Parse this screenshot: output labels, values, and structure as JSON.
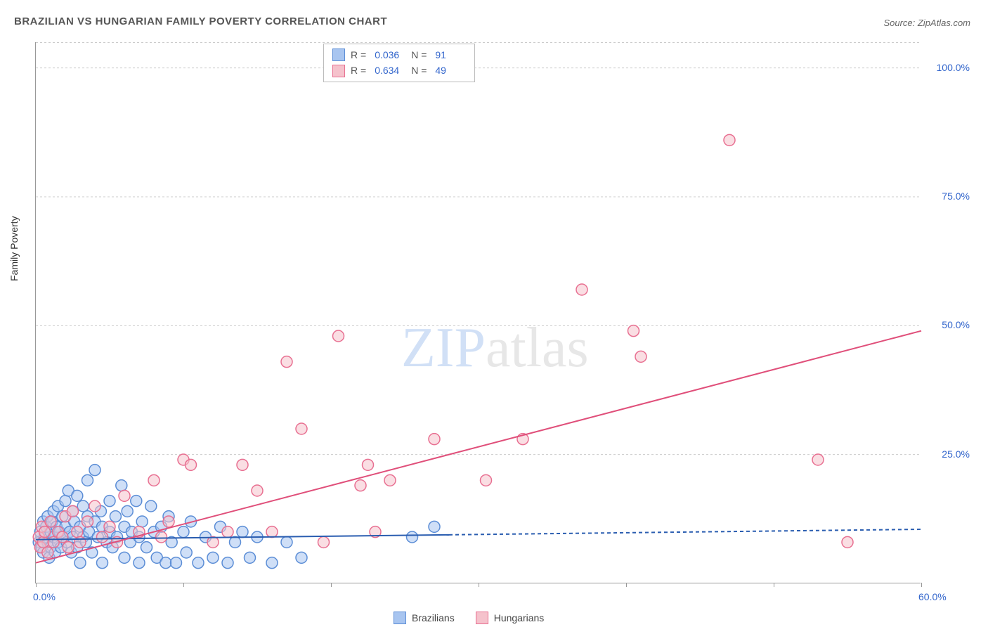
{
  "title": "BRAZILIAN VS HUNGARIAN FAMILY POVERTY CORRELATION CHART",
  "source_label": "Source: ZipAtlas.com",
  "y_axis_label": "Family Poverty",
  "watermark": {
    "part1": "ZIP",
    "part2": "atlas"
  },
  "chart": {
    "type": "scatter",
    "xlim": [
      0,
      60
    ],
    "ylim": [
      0,
      105
    ],
    "background_color": "#ffffff",
    "grid_color": "#cccccc",
    "grid_dash": "3,3",
    "axis_color": "#999999",
    "y_ticks": [
      25,
      50,
      75,
      100
    ],
    "y_tick_labels": [
      "25.0%",
      "50.0%",
      "75.0%",
      "100.0%"
    ],
    "x_ticks": [
      0,
      10,
      20,
      30,
      40,
      50,
      60
    ],
    "x_tick_labels_shown": {
      "0": "0.0%",
      "60": "60.0%"
    },
    "tick_label_color": "#3366cc",
    "tick_label_fontsize": 14,
    "marker_radius": 8,
    "marker_stroke_width": 1.5,
    "series": [
      {
        "id": "brazilians",
        "label": "Brazilians",
        "fill_color": "#a8c5f0",
        "stroke_color": "#5b8dd6",
        "fill_opacity": 0.55,
        "R": "0.036",
        "N": "91",
        "trend": {
          "y_at_x0": 8.5,
          "y_at_x60": 10.5,
          "solid_until_x": 28,
          "line_color": "#2a5db0",
          "line_width": 2
        },
        "points": [
          [
            0.2,
            8
          ],
          [
            0.3,
            10
          ],
          [
            0.4,
            7
          ],
          [
            0.5,
            12
          ],
          [
            0.5,
            6
          ],
          [
            0.6,
            9
          ],
          [
            0.7,
            11
          ],
          [
            0.8,
            8
          ],
          [
            0.8,
            13
          ],
          [
            0.9,
            5
          ],
          [
            1.0,
            10
          ],
          [
            1.0,
            7
          ],
          [
            1.1,
            12
          ],
          [
            1.2,
            9
          ],
          [
            1.2,
            14
          ],
          [
            1.3,
            6
          ],
          [
            1.4,
            11
          ],
          [
            1.5,
            8
          ],
          [
            1.5,
            15
          ],
          [
            1.6,
            10
          ],
          [
            1.7,
            7
          ],
          [
            1.8,
            13
          ],
          [
            1.8,
            9
          ],
          [
            2.0,
            16
          ],
          [
            2.0,
            11
          ],
          [
            2.1,
            8
          ],
          [
            2.2,
            18
          ],
          [
            2.3,
            10
          ],
          [
            2.4,
            6
          ],
          [
            2.5,
            14
          ],
          [
            2.5,
            9
          ],
          [
            2.6,
            12
          ],
          [
            2.8,
            7
          ],
          [
            2.8,
            17
          ],
          [
            3.0,
            11
          ],
          [
            3.0,
            4
          ],
          [
            3.2,
            9
          ],
          [
            3.2,
            15
          ],
          [
            3.4,
            8
          ],
          [
            3.5,
            13
          ],
          [
            3.5,
            20
          ],
          [
            3.6,
            10
          ],
          [
            3.8,
            6
          ],
          [
            4.0,
            12
          ],
          [
            4.0,
            22
          ],
          [
            4.2,
            9
          ],
          [
            4.4,
            14
          ],
          [
            4.5,
            4
          ],
          [
            4.5,
            11
          ],
          [
            4.8,
            8
          ],
          [
            5.0,
            16
          ],
          [
            5.0,
            10
          ],
          [
            5.2,
            7
          ],
          [
            5.4,
            13
          ],
          [
            5.5,
            9
          ],
          [
            5.8,
            19
          ],
          [
            6.0,
            11
          ],
          [
            6.0,
            5
          ],
          [
            6.2,
            14
          ],
          [
            6.4,
            8
          ],
          [
            6.5,
            10
          ],
          [
            6.8,
            16
          ],
          [
            7.0,
            9
          ],
          [
            7.0,
            4
          ],
          [
            7.2,
            12
          ],
          [
            7.5,
            7
          ],
          [
            7.8,
            15
          ],
          [
            8.0,
            10
          ],
          [
            8.2,
            5
          ],
          [
            8.5,
            11
          ],
          [
            8.8,
            4
          ],
          [
            9.0,
            13
          ],
          [
            9.2,
            8
          ],
          [
            9.5,
            4
          ],
          [
            10.0,
            10
          ],
          [
            10.2,
            6
          ],
          [
            10.5,
            12
          ],
          [
            11.0,
            4
          ],
          [
            11.5,
            9
          ],
          [
            12.0,
            5
          ],
          [
            12.5,
            11
          ],
          [
            13.0,
            4
          ],
          [
            13.5,
            8
          ],
          [
            14.0,
            10
          ],
          [
            14.5,
            5
          ],
          [
            15.0,
            9
          ],
          [
            16.0,
            4
          ],
          [
            17.0,
            8
          ],
          [
            18.0,
            5
          ],
          [
            25.5,
            9
          ],
          [
            27.0,
            11
          ]
        ]
      },
      {
        "id": "hungarians",
        "label": "Hungarians",
        "fill_color": "#f5c2cc",
        "stroke_color": "#e86f91",
        "fill_opacity": 0.55,
        "R": "0.634",
        "N": "49",
        "trend": {
          "y_at_x0": 4,
          "y_at_x60": 49,
          "solid_until_x": 60,
          "line_color": "#e04f7a",
          "line_width": 2
        },
        "points": [
          [
            0.2,
            9
          ],
          [
            0.3,
            7
          ],
          [
            0.4,
            11
          ],
          [
            0.5,
            8
          ],
          [
            0.6,
            10
          ],
          [
            0.8,
            6
          ],
          [
            1.0,
            12
          ],
          [
            1.2,
            8
          ],
          [
            1.5,
            10
          ],
          [
            1.8,
            9
          ],
          [
            2.0,
            13
          ],
          [
            2.2,
            7
          ],
          [
            2.5,
            14
          ],
          [
            2.8,
            10
          ],
          [
            3.0,
            8
          ],
          [
            3.5,
            12
          ],
          [
            4.0,
            15
          ],
          [
            4.5,
            9
          ],
          [
            5.0,
            11
          ],
          [
            5.5,
            8
          ],
          [
            6.0,
            17
          ],
          [
            7.0,
            10
          ],
          [
            8.0,
            20
          ],
          [
            8.5,
            9
          ],
          [
            9.0,
            12
          ],
          [
            10.0,
            24
          ],
          [
            10.5,
            23
          ],
          [
            12.0,
            8
          ],
          [
            13.0,
            10
          ],
          [
            14.0,
            23
          ],
          [
            15.0,
            18
          ],
          [
            16.0,
            10
          ],
          [
            17.0,
            43
          ],
          [
            18.0,
            30
          ],
          [
            19.5,
            8
          ],
          [
            20.5,
            48
          ],
          [
            22.0,
            19
          ],
          [
            22.5,
            23
          ],
          [
            23.0,
            10
          ],
          [
            24.0,
            20
          ],
          [
            27.0,
            28
          ],
          [
            30.5,
            20
          ],
          [
            33.0,
            28
          ],
          [
            37.0,
            57
          ],
          [
            40.5,
            49
          ],
          [
            41.0,
            44
          ],
          [
            47.0,
            86
          ],
          [
            53.0,
            24
          ],
          [
            55.0,
            8
          ]
        ]
      }
    ]
  },
  "legend_top": {
    "r_label": "R =",
    "n_label": "N ="
  },
  "legend_bottom": {
    "items": [
      "Brazilians",
      "Hungarians"
    ]
  }
}
